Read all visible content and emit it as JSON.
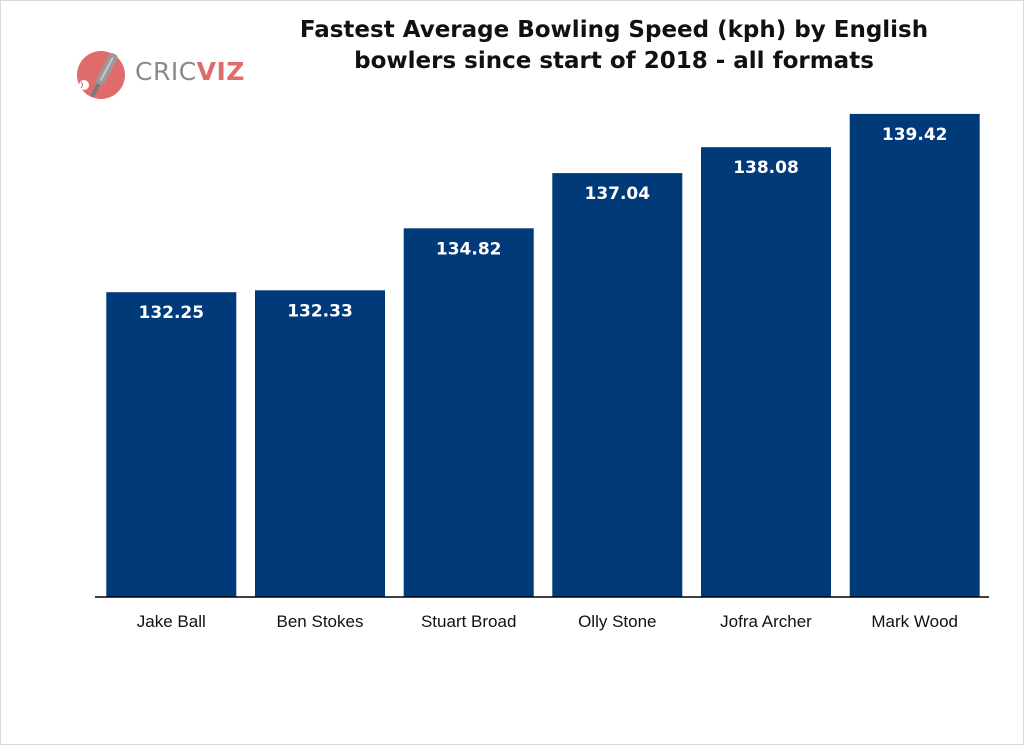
{
  "logo": {
    "text_part1": "CRIC",
    "text_part2": "VIZ",
    "icon": "cricket-bat-ball-icon"
  },
  "colors": {
    "bar": "#003a79",
    "logo_accent": "#e06b6b",
    "logo_grey": "#8a8a8a",
    "axis": "#000000"
  },
  "chart_data": {
    "type": "bar",
    "title": "Fastest Average Bowling Speed (kph) by English bowlers since start of 2018 - all formats",
    "title_lines": [
      "Fastest Average Bowling Speed (kph) by English",
      "bowlers since start of 2018 - all formats"
    ],
    "xlabel": "",
    "ylabel": "",
    "categories": [
      "Jake Ball",
      "Ben Stokes",
      "Stuart Broad",
      "Olly Stone",
      "Jofra Archer",
      "Mark Wood"
    ],
    "values": [
      132.25,
      132.33,
      134.82,
      137.04,
      138.08,
      139.42
    ],
    "value_labels": [
      "132.25",
      "132.33",
      "134.82",
      "137.04",
      "138.08",
      "139.42"
    ],
    "ylim": [
      120,
      140.5
    ],
    "grid": false,
    "legend": "none",
    "data_labels": "inside-top"
  }
}
